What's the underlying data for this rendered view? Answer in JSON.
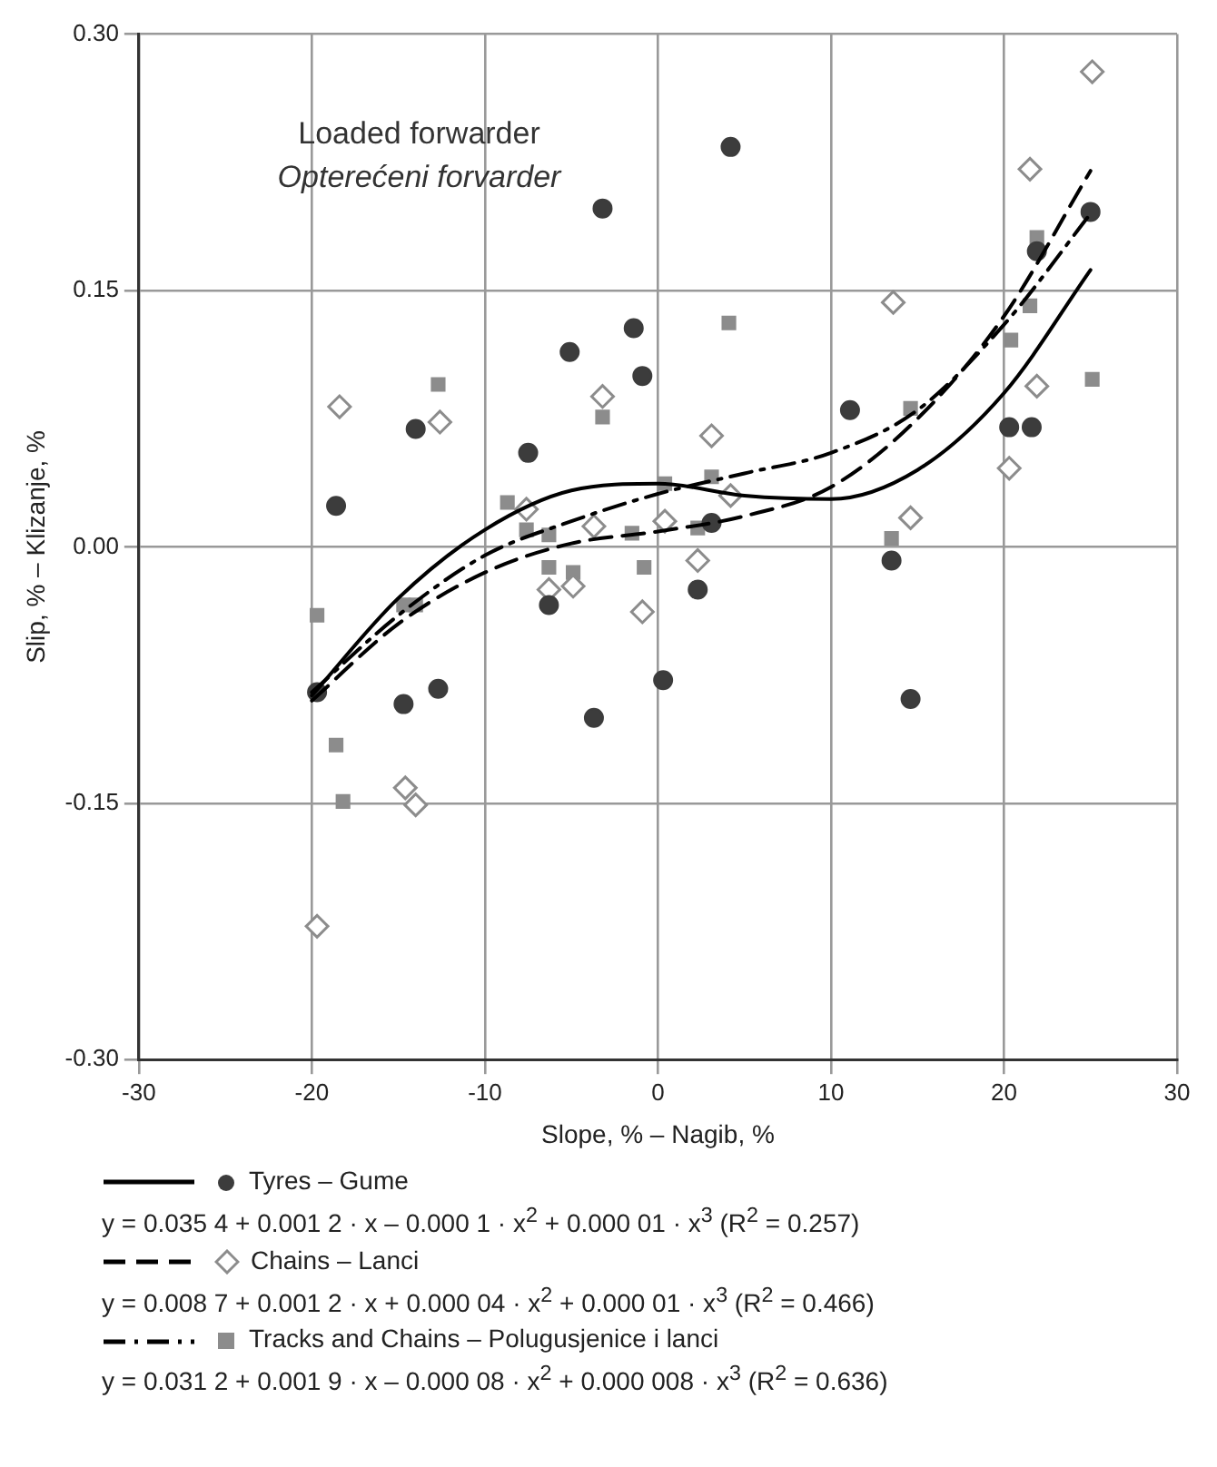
{
  "chart_data": {
    "type": "scatter",
    "xlabel": "Slope, % – Nagib, %",
    "ylabel": "Slip, % – Klizanje, %",
    "xlim": [
      -30,
      30
    ],
    "xticks": [
      -30,
      -20,
      -10,
      0,
      10,
      20,
      30
    ],
    "ylim": [
      -0.3,
      0.3
    ],
    "yticks": [
      {
        "value": -0.3,
        "label": "-0.30"
      },
      {
        "value": -0.15,
        "label": "-0.15"
      },
      {
        "value": 0,
        "label": "0.00"
      },
      {
        "value": 0.15,
        "label": "0.15"
      },
      {
        "value": 0.3,
        "label": "0.30"
      }
    ],
    "grid": true,
    "legend": "bottom",
    "annotations": [
      "Loaded forwarder",
      "Opterećeni forvarder",
      "y = 0.035 4 + 0.001 2 · x – 0.000 1 · x$^{2}$ + 0.000 01 · x$^{3}$ (R$^{2}$ = 0.257)",
      "y = 0.008 7 + 0.001 2 · x + 0.000 04 · x$^{2}$ + 0.000 01 · x$^{3}$ (R$^{2}$ = 0.466)",
      "y = 0.031 2 + 0.001 9 · x – 0.000 08 · x$^{2}$ + 0.000 008 · x$^{3}$ (R$^{2}$ = 0.636)"
    ],
    "series": [
      {
        "name": "Tyres – Gume",
        "type": "scatter",
        "marker": "circle",
        "color": "#3c3c3c",
        "x": [
          -18.6,
          -14,
          -7.5,
          -5.1,
          -3.2,
          4.2,
          -1.4,
          -0.9,
          11.1,
          20.3,
          21.6,
          25,
          21.9,
          13.5,
          2.3,
          0.3,
          -3.7,
          14.6,
          -6.3,
          -19.7,
          -14.7,
          -12.7,
          3.1
        ],
        "values": [
          0.024,
          0.069,
          0.055,
          0.114,
          0.198,
          0.234,
          0.128,
          0.1,
          0.08,
          0.07,
          0.07,
          0.196,
          0.173,
          -0.008,
          -0.025,
          -0.078,
          -0.1,
          -0.089,
          -0.034,
          -0.085,
          -0.092,
          -0.083,
          0.014
        ]
      },
      {
        "name": "Chains – Lanci",
        "type": "scatter",
        "marker": "diamond",
        "color": "#8c8c8c",
        "x": [
          -18.4,
          -12.6,
          -3.2,
          -7.6,
          3.1,
          13.6,
          21.5,
          25.1,
          21.9,
          20.3,
          14.6,
          -3.7,
          0.4,
          4.2,
          2.3,
          -0.9,
          -4.9,
          -14.6,
          -14,
          -19.7,
          -6.3
        ],
        "values": [
          0.082,
          0.073,
          0.088,
          0.022,
          0.065,
          0.143,
          0.221,
          0.278,
          0.094,
          0.046,
          0.017,
          0.012,
          0.015,
          0.03,
          -0.008,
          -0.038,
          -0.023,
          -0.141,
          -0.151,
          -0.222,
          -0.025
        ]
      },
      {
        "name": "Tracks and Chains – Polugusjenice i lanci",
        "type": "scatter",
        "marker": "square",
        "color": "#8c8c8c",
        "x": [
          -12.7,
          -3.2,
          -8.7,
          -7.6,
          -6.3,
          4.1,
          0.4,
          3.1,
          -1.5,
          2.3,
          14.6,
          13.5,
          21.9,
          21.5,
          20.4,
          25.1,
          -0.8,
          -19.7,
          -18.6,
          -18.2,
          -14.7,
          -14,
          -6.3,
          -4.9
        ],
        "values": [
          0.095,
          0.076,
          0.026,
          0.01,
          0.007,
          0.131,
          0.037,
          0.041,
          0.008,
          0.011,
          0.081,
          0.005,
          0.181,
          0.141,
          0.121,
          0.098,
          -0.012,
          -0.04,
          -0.116,
          -0.149,
          -0.034,
          -0.034,
          -0.012,
          -0.015
        ]
      },
      {
        "type": "line",
        "line_style": "solid",
        "marker": "none",
        "color": "#000000",
        "x": [
          -20,
          -15,
          -10,
          -5,
          0,
          5,
          10,
          15,
          20,
          25
        ],
        "values": [
          -0.087,
          -0.03,
          0.01,
          0.033,
          0.037,
          0.03,
          0.028,
          0.045,
          0.09,
          0.162
        ]
      },
      {
        "type": "line",
        "line_style": "dashed",
        "marker": "none",
        "color": "#000000",
        "x": [
          -20,
          -15,
          -10,
          -5,
          0,
          5,
          10,
          15,
          20,
          25
        ],
        "values": [
          -0.09,
          -0.045,
          -0.015,
          0.002,
          0.009,
          0.018,
          0.035,
          0.075,
          0.135,
          0.22
        ]
      },
      {
        "type": "line",
        "line_style": "dashdot",
        "marker": "none",
        "color": "#000000",
        "x": [
          -20,
          -15,
          -10,
          -5,
          0,
          5,
          10,
          15,
          20,
          25
        ],
        "values": [
          -0.085,
          -0.04,
          -0.005,
          0.015,
          0.031,
          0.043,
          0.055,
          0.08,
          0.13,
          0.195
        ]
      }
    ]
  }
}
